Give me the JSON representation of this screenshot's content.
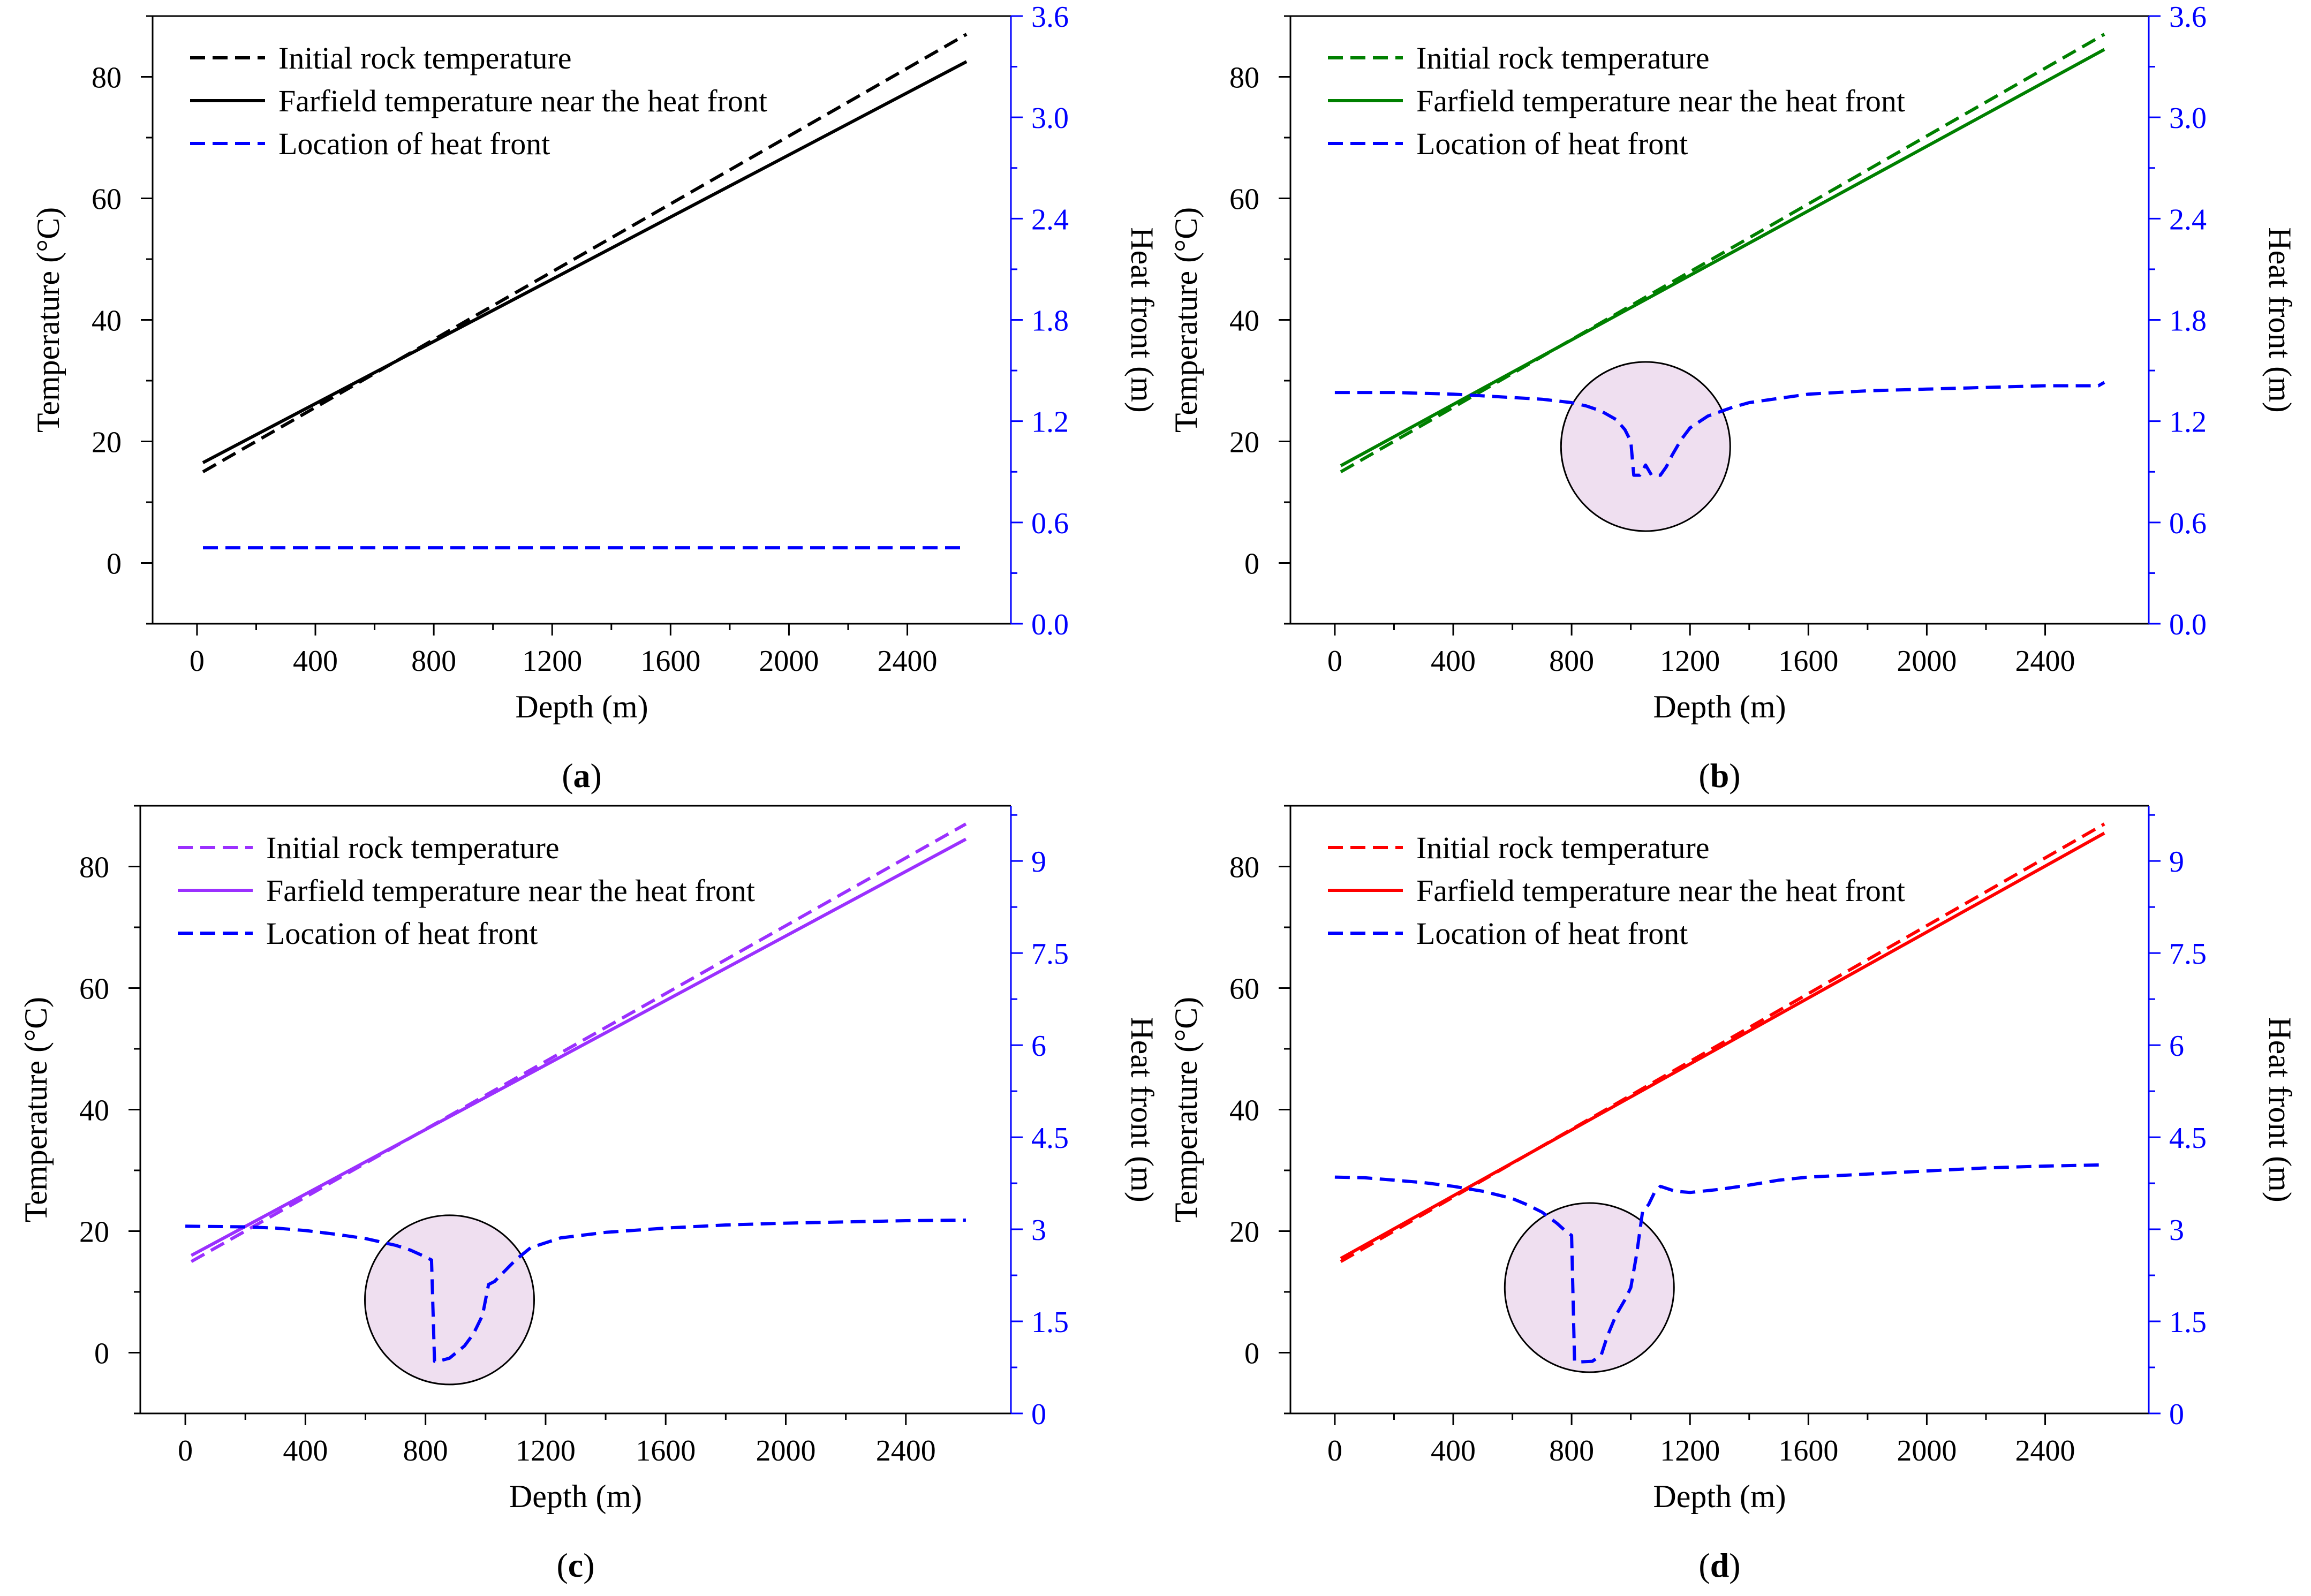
{
  "figure": {
    "common": {
      "xlabel": "Depth (m)",
      "ylabel_left": "Temperature  (°C)",
      "ylabel_right": "Heat front  (m)",
      "x_ticks": [
        0,
        400,
        800,
        1200,
        1600,
        2000,
        2400
      ],
      "left_ticks": [
        0,
        20,
        40,
        60,
        80
      ],
      "legend": [
        "Initial rock temperature",
        "Farfield temperature near the heat front",
        "Location of heat front"
      ]
    },
    "panel_labels": [
      "(a)",
      "(b)",
      "(c)",
      "(d)"
    ]
  },
  "chart_data": [
    {
      "type": "line",
      "panel": "(a)",
      "xlabel": "Depth (m)",
      "ylabel": "Temperature  (°C)",
      "y2label": "Heat front  (m)",
      "xlim": [
        -150,
        2750
      ],
      "ylim": [
        -10,
        90
      ],
      "y2lim": [
        0,
        3.6
      ],
      "right_ticks": [
        "0.0",
        "0.6",
        "1.2",
        "1.8",
        "2.4",
        "3.0",
        "3.6"
      ],
      "right_tick_values": [
        0,
        0.6,
        1.2,
        1.8,
        2.4,
        3.0,
        3.6
      ],
      "color": "#000000",
      "series": [
        {
          "name": "Initial rock temperature",
          "axis": "left",
          "style": "dashed",
          "color": "#000000",
          "x": [
            20,
            2600
          ],
          "y": [
            15,
            87
          ]
        },
        {
          "name": "Farfield temperature near the heat front",
          "axis": "left",
          "style": "solid",
          "color": "#000000",
          "x": [
            20,
            2600
          ],
          "y": [
            16.5,
            82.5
          ]
        },
        {
          "name": "Location of heat front",
          "axis": "right",
          "style": "dashed",
          "color": "#0000ff",
          "x": [
            20,
            2600
          ],
          "y": [
            0.45,
            0.45
          ]
        }
      ]
    },
    {
      "type": "line",
      "panel": "(b)",
      "xlabel": "Depth (m)",
      "ylabel": "Temperature  (°C)",
      "y2label": "Heat front  (m)",
      "xlim": [
        -150,
        2750
      ],
      "ylim": [
        -10,
        90
      ],
      "y2lim": [
        0,
        3.6
      ],
      "right_ticks": [
        "0.0",
        "0.6",
        "1.2",
        "1.8",
        "2.4",
        "3.0",
        "3.6"
      ],
      "right_tick_values": [
        0,
        0.6,
        1.2,
        1.8,
        2.4,
        3.0,
        3.6
      ],
      "color": "#008000",
      "highlight": {
        "x": 1050,
        "y2": 1.05
      },
      "series": [
        {
          "name": "Initial rock temperature",
          "axis": "left",
          "style": "dashed",
          "color": "#008000",
          "x": [
            20,
            2600
          ],
          "y": [
            15,
            87
          ]
        },
        {
          "name": "Farfield temperature near the heat front",
          "axis": "left",
          "style": "solid",
          "color": "#008000",
          "x": [
            20,
            2600
          ],
          "y": [
            16,
            84.5
          ]
        },
        {
          "name": "Location of heat front",
          "axis": "right",
          "style": "dashed",
          "color": "#0000ff",
          "x": [
            0,
            200,
            400,
            500,
            600,
            700,
            800,
            850,
            900,
            950,
            980,
            1000,
            1010,
            1030,
            1050,
            1070,
            1100,
            1120,
            1140,
            1170,
            1200,
            1260,
            1340,
            1400,
            1600,
            1800,
            2000,
            2200,
            2400,
            2580,
            2600
          ],
          "y": [
            1.37,
            1.37,
            1.36,
            1.35,
            1.34,
            1.33,
            1.31,
            1.29,
            1.26,
            1.21,
            1.15,
            1.08,
            0.88,
            0.88,
            0.94,
            0.88,
            0.88,
            0.93,
            1.0,
            1.09,
            1.16,
            1.23,
            1.28,
            1.31,
            1.36,
            1.38,
            1.39,
            1.4,
            1.41,
            1.41,
            1.43
          ]
        }
      ]
    },
    {
      "type": "line",
      "panel": "(c)",
      "xlabel": "Depth (m)",
      "ylabel": "Temperature  (°C)",
      "y2label": "Heat front  (m)",
      "xlim": [
        -150,
        2750
      ],
      "ylim": [
        -10,
        90
      ],
      "y2lim": [
        0,
        9.9
      ],
      "right_ticks": [
        "0",
        "1.5",
        "3",
        "4.5",
        "6",
        "7.5",
        "9"
      ],
      "right_tick_values": [
        0,
        1.5,
        3,
        4.5,
        6,
        7.5,
        9
      ],
      "color": "#9b30ff",
      "highlight": {
        "x": 880,
        "y2": 1.85
      },
      "series": [
        {
          "name": "Initial rock temperature",
          "axis": "left",
          "style": "dashed",
          "color": "#9b30ff",
          "x": [
            20,
            2600
          ],
          "y": [
            15,
            87
          ]
        },
        {
          "name": "Farfield temperature near the heat front",
          "axis": "left",
          "style": "solid",
          "color": "#9b30ff",
          "x": [
            20,
            2600
          ],
          "y": [
            16,
            84.5
          ]
        },
        {
          "name": "Location of heat front",
          "axis": "right",
          "style": "dashed",
          "color": "#0000ff",
          "x": [
            0,
            200,
            300,
            400,
            500,
            600,
            700,
            750,
            800,
            820,
            830,
            850,
            880,
            900,
            930,
            960,
            990,
            1010,
            1030,
            1060,
            1100,
            1150,
            1250,
            1400,
            1600,
            1800,
            2000,
            2200,
            2400,
            2600
          ],
          "y": [
            3.05,
            3.04,
            3.02,
            2.98,
            2.92,
            2.85,
            2.74,
            2.66,
            2.55,
            2.5,
            0.85,
            0.86,
            0.9,
            0.98,
            1.1,
            1.3,
            1.6,
            2.1,
            2.15,
            2.3,
            2.5,
            2.7,
            2.86,
            2.95,
            3.02,
            3.07,
            3.1,
            3.12,
            3.14,
            3.15
          ]
        }
      ]
    },
    {
      "type": "line",
      "panel": "(d)",
      "xlabel": "Depth (m)",
      "ylabel": "Temperature  (°C)",
      "y2label": "Heat front  (m)",
      "xlim": [
        -150,
        2750
      ],
      "ylim": [
        -10,
        90
      ],
      "y2lim": [
        0,
        9.9
      ],
      "right_ticks": [
        "0",
        "1.5",
        "3",
        "4.5",
        "6",
        "7.5",
        "9"
      ],
      "right_tick_values": [
        0,
        1.5,
        3,
        4.5,
        6,
        7.5,
        9
      ],
      "color": "#ff0000",
      "highlight": {
        "x": 860,
        "y2": 2.05
      },
      "series": [
        {
          "name": "Initial rock temperature",
          "axis": "left",
          "style": "dashed",
          "color": "#ff0000",
          "x": [
            20,
            2600
          ],
          "y": [
            15,
            87
          ]
        },
        {
          "name": "Farfield temperature near the heat front",
          "axis": "left",
          "style": "solid",
          "color": "#ff0000",
          "x": [
            20,
            2600
          ],
          "y": [
            15.5,
            85.5
          ]
        },
        {
          "name": "Location of heat front",
          "axis": "right",
          "style": "dashed",
          "color": "#0000ff",
          "x": [
            0,
            100,
            200,
            300,
            400,
            500,
            600,
            650,
            700,
            750,
            780,
            800,
            810,
            830,
            870,
            900,
            920,
            950,
            980,
            1000,
            1020,
            1040,
            1060,
            1080,
            1100,
            1150,
            1200,
            1300,
            1400,
            1500,
            1600,
            1800,
            2000,
            2200,
            2400,
            2600
          ],
          "y": [
            3.85,
            3.84,
            3.8,
            3.76,
            3.7,
            3.62,
            3.5,
            3.4,
            3.28,
            3.1,
            2.97,
            2.9,
            0.85,
            0.84,
            0.85,
            0.95,
            1.25,
            1.6,
            1.85,
            2.05,
            2.6,
            3.3,
            3.4,
            3.6,
            3.7,
            3.62,
            3.6,
            3.65,
            3.72,
            3.8,
            3.85,
            3.9,
            3.95,
            4.0,
            4.03,
            4.05
          ]
        }
      ]
    }
  ]
}
